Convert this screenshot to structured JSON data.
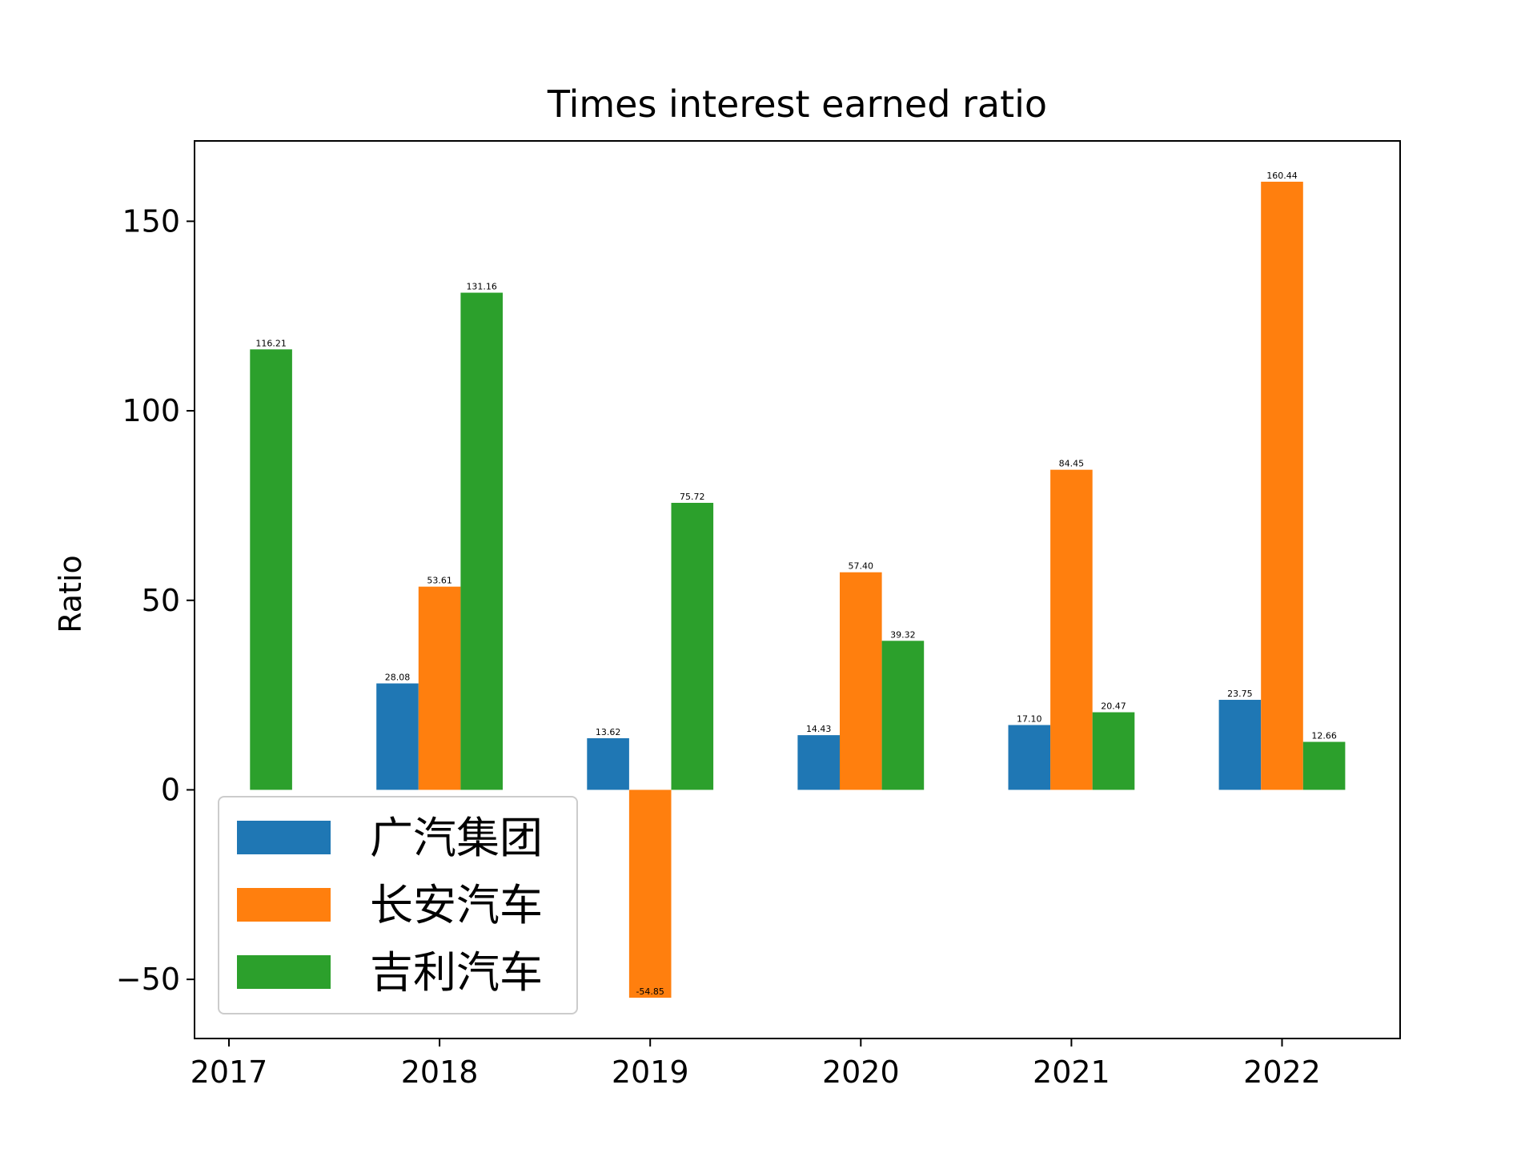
{
  "chart_data": {
    "type": "bar",
    "title": "Times interest earned ratio",
    "xlabel": "",
    "ylabel": "Ratio",
    "categories": [
      "2017",
      "2018",
      "2019",
      "2020",
      "2021",
      "2022"
    ],
    "series": [
      {
        "name": "广汽集团",
        "color": "#1f77b4",
        "values": [
          null,
          28.08,
          13.62,
          14.43,
          17.1,
          23.75
        ],
        "labels": [
          "",
          "28.08",
          "13.62",
          "14.43",
          "17.10",
          "23.75"
        ]
      },
      {
        "name": "长安汽车",
        "color": "#ff7f0e",
        "values": [
          null,
          53.61,
          -54.85,
          57.4,
          84.45,
          160.44
        ],
        "labels": [
          "",
          "53.61",
          "-54.85",
          "57.40",
          "84.45",
          "160.44"
        ]
      },
      {
        "name": "吉利汽车",
        "color": "#2ca02c",
        "values": [
          116.21,
          131.16,
          75.72,
          39.32,
          20.47,
          12.66
        ],
        "labels": [
          "116.21",
          "131.16",
          "75.72",
          "39.32",
          "20.47",
          "12.66"
        ]
      }
    ],
    "yticks": [
      -50,
      0,
      50,
      100,
      150
    ],
    "ytick_labels": [
      "−50",
      "0",
      "50",
      "100",
      "150"
    ],
    "ylim": [
      -65.6,
      171.2
    ],
    "grid": false,
    "legend_position": "lower-left"
  }
}
